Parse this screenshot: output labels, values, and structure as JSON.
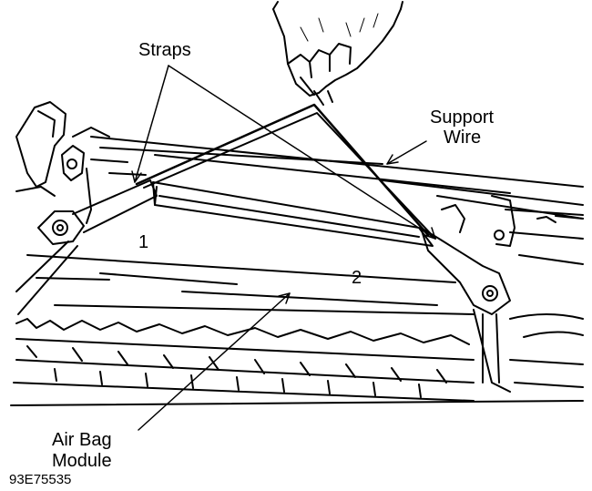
{
  "labels": {
    "straps": "Straps",
    "support_wire_line1": "Support",
    "support_wire_line2": "Wire",
    "air_bag_line1": "Air Bag",
    "air_bag_line2": "Module",
    "callout_1": "1",
    "callout_2": "2",
    "figure_code": "93E75535"
  },
  "colors": {
    "ink": "#000000",
    "paper": "#ffffff"
  }
}
